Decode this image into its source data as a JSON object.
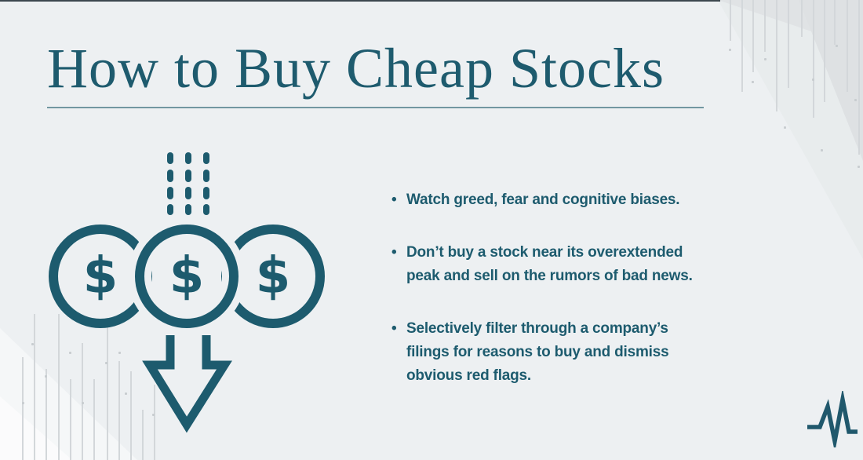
{
  "header": {
    "title": "How to Buy Cheap Stocks"
  },
  "bullets": [
    {
      "text": "Watch greed, fear and cognitive biases.",
      "lines": [
        "Watch greed, fear and cognitive biases."
      ]
    },
    {
      "text": "Don’t buy a stock near its overextended peak and sell on the rumors of bad news.",
      "lines": [
        "Don’t buy a stock near its overextended",
        "peak and sell on the rumors of bad news."
      ]
    },
    {
      "text": "Selectively filter through a company’s filings for reasons to buy and dismiss obvious red flags.",
      "lines": [
        "Selectively filter through a company’s",
        "filings for reasons to buy and dismiss",
        "obvious red flags."
      ]
    }
  ],
  "illustration": {
    "dollar_symbol": "$",
    "icons": [
      "falling-dots-pattern",
      "dollar-coin-left",
      "dollar-coin-middle",
      "dollar-coin-right",
      "down-arrow-icon"
    ]
  },
  "brand": {
    "logo_icon": "pulse-m-logo-icon"
  },
  "colors": {
    "teal": "#1d5b6e",
    "background": "#edf0f2",
    "title_underline": "#5c8793",
    "top_bar": "#3c474e",
    "decor_line": "#d3d7da"
  }
}
